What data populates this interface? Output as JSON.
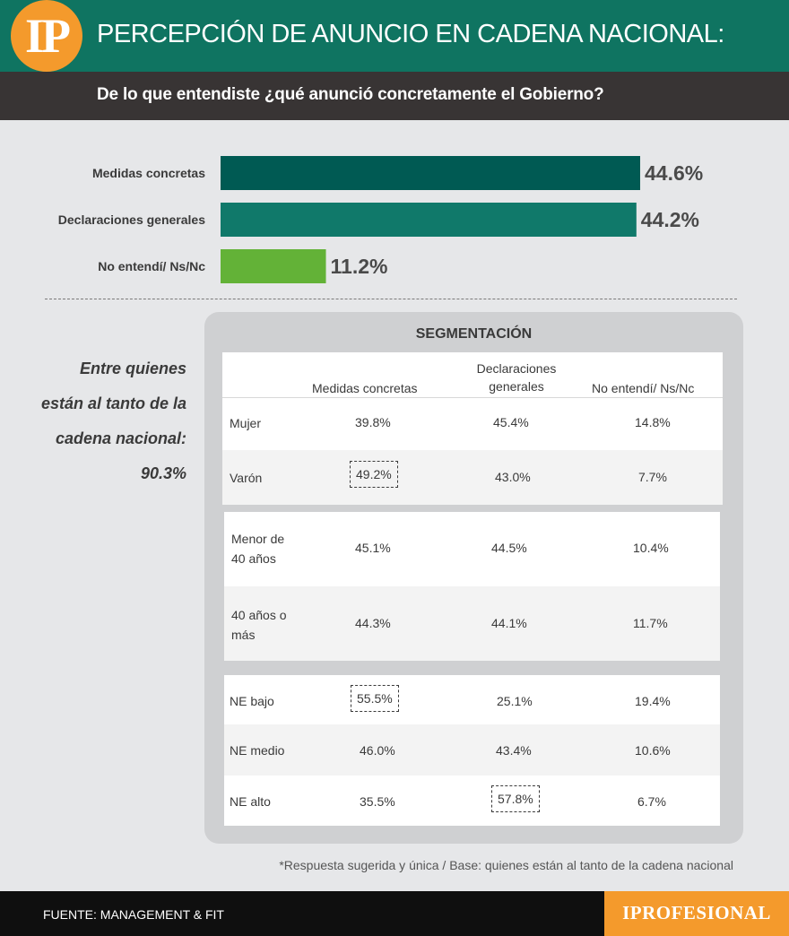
{
  "header": {
    "logo_text": "IP",
    "title": "PERCEPCIÓN DE ANUNCIO EN CADENA NACIONAL:",
    "question": "De lo que entendiste ¿qué anunció concretamente el Gobierno?"
  },
  "chart_data": {
    "type": "bar",
    "orientation": "horizontal",
    "categories": [
      "Medidas concretas",
      "Declaraciones generales",
      "No entendí/ Ns/Nc"
    ],
    "values": [
      44.6,
      44.2,
      11.2
    ],
    "value_labels": [
      "44.6%",
      "44.2%",
      "11.2%"
    ],
    "colors": [
      "#005a53",
      "#10796a",
      "#63b237"
    ],
    "xlim": [
      0,
      44.6
    ],
    "grid": false,
    "legend": "none"
  },
  "note_left": "Entre quienes están al tanto de la cadena nacional: 90.3%",
  "segmentation": {
    "title": "SEGMENTACIÓN",
    "columns": [
      "Medidas concretas",
      "Declaraciones generales",
      "No entendí/ Ns/Nc"
    ],
    "groups": [
      {
        "rows": [
          {
            "label": "Mujer",
            "values": [
              "39.8%",
              "45.4%",
              "14.8%"
            ],
            "highlight": null
          },
          {
            "label": "Varón",
            "values": [
              "49.2%",
              "43.0%",
              "7.7%"
            ],
            "highlight": 0
          }
        ]
      },
      {
        "rows": [
          {
            "label": "Menor de 40 años",
            "values": [
              "45.1%",
              "44.5%",
              "10.4%"
            ],
            "highlight": null
          },
          {
            "label": "40 años o más",
            "values": [
              "44.3%",
              "44.1%",
              "11.7%"
            ],
            "highlight": null
          }
        ]
      },
      {
        "rows": [
          {
            "label": "NE bajo",
            "values": [
              "55.5%",
              "25.1%",
              "19.4%"
            ],
            "highlight": 0
          },
          {
            "label": "NE medio",
            "values": [
              "46.0%",
              "43.4%",
              "10.6%"
            ],
            "highlight": null
          },
          {
            "label": "NE alto",
            "values": [
              "35.5%",
              "57.8%",
              "6.7%"
            ],
            "highlight": 1
          }
        ]
      }
    ]
  },
  "footnote": "*Respuesta sugerida y única / Base: quienes están al tanto de la cadena nacional",
  "footer": {
    "source": "FUENTE: MANAGEMENT & FIT",
    "brand": "IPROFESIONAL"
  }
}
